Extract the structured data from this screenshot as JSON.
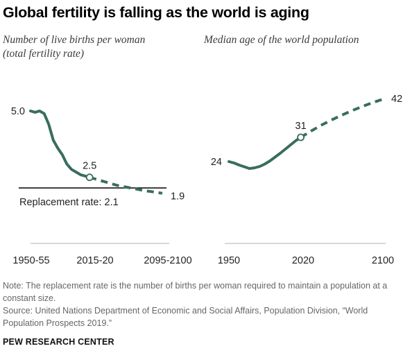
{
  "title": "Global fertility is falling as the world is aging",
  "colors": {
    "line": "#386d5f",
    "baseline": "#b0b0b0",
    "replacement": "#000000"
  },
  "chart_data": [
    {
      "type": "line",
      "title": "Number of live births per woman (total fertility rate)",
      "xlabel": "",
      "ylabel": "",
      "x_ticks": [
        "1950-55",
        "2015-20",
        "2095-2100"
      ],
      "ylim": [
        0,
        5.6
      ],
      "grid": false,
      "series": [
        {
          "style": "solid",
          "x": [
            1950,
            1955,
            1960,
            1965,
            1970,
            1975,
            1980,
            1985,
            1990,
            1995,
            2000,
            2005,
            2010,
            2015
          ],
          "y": [
            5.0,
            4.95,
            5.0,
            4.9,
            4.5,
            3.9,
            3.6,
            3.35,
            3.0,
            2.8,
            2.7,
            2.6,
            2.55,
            2.5
          ]
        },
        {
          "style": "dashed",
          "x": [
            2015,
            2030,
            2045,
            2060,
            2075,
            2085,
            2095
          ],
          "y": [
            2.5,
            2.35,
            2.2,
            2.1,
            2.0,
            1.95,
            1.9
          ]
        }
      ],
      "data_labels": [
        {
          "x": 1950,
          "y": 5.0,
          "text": "5.0"
        },
        {
          "x": 2015,
          "y": 2.5,
          "text": "2.5",
          "marker": true
        },
        {
          "x": 2095,
          "y": 1.9,
          "text": "1.9"
        }
      ],
      "reference_line": {
        "value": 2.1,
        "label": "Replacement rate: 2.1"
      }
    },
    {
      "type": "line",
      "title": "Median age of the world population",
      "xlabel": "",
      "ylabel": "",
      "x_ticks": [
        "1950",
        "2020",
        "2100"
      ],
      "ylim": [
        0,
        46
      ],
      "grid": false,
      "series": [
        {
          "style": "solid",
          "x": [
            1950,
            1955,
            1960,
            1965,
            1970,
            1975,
            1980,
            1985,
            1990,
            1995,
            2000,
            2005,
            2010,
            2015,
            2020
          ],
          "y": [
            24,
            23.6,
            23.0,
            22.5,
            22.0,
            22.2,
            22.6,
            23.3,
            24.2,
            25.3,
            26.4,
            27.6,
            28.8,
            30.0,
            31
          ]
        },
        {
          "style": "dashed",
          "x": [
            2020,
            2030,
            2040,
            2050,
            2060,
            2070,
            2080,
            2090,
            2100
          ],
          "y": [
            31,
            32.8,
            34.5,
            36.0,
            37.4,
            38.7,
            39.9,
            41.0,
            42
          ]
        }
      ],
      "data_labels": [
        {
          "x": 1950,
          "y": 24,
          "text": "24"
        },
        {
          "x": 2020,
          "y": 31,
          "text": "31",
          "marker": true
        },
        {
          "x": 2100,
          "y": 42,
          "text": "42"
        }
      ]
    }
  ],
  "notes": {
    "note": "Note: The replacement rate is the number of births per woman required to maintain a population at a constant size.",
    "source": "Source: United Nations Department of Economic and Social Affairs, Population Division, “World Population Prospects 2019.”"
  },
  "brand": "PEW RESEARCH CENTER"
}
